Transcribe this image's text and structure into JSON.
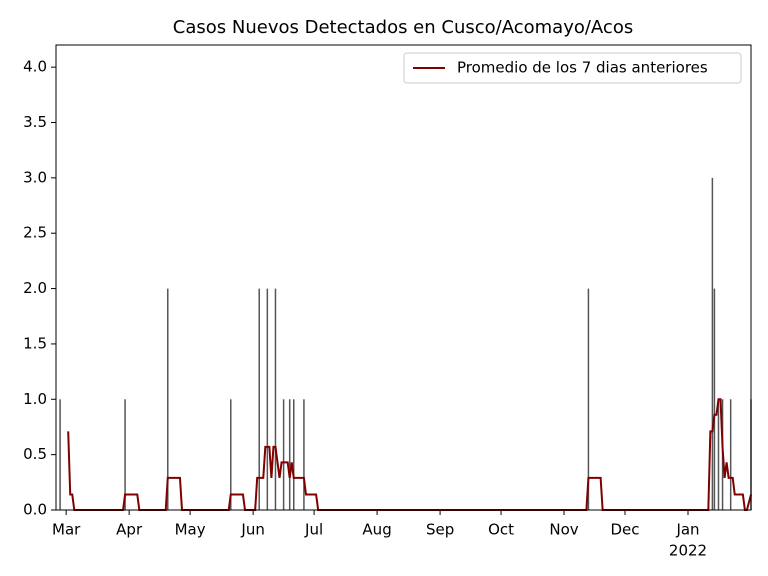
{
  "chart_data": {
    "type": "bar",
    "title": "Casos Nuevos Detectados en Cusco/Acomayo/Acos",
    "bars": {
      "color": "#555555",
      "x": [
        -3,
        29,
        50,
        81,
        95,
        99,
        103,
        107,
        110,
        112,
        117,
        257,
        318,
        319,
        321,
        323,
        327,
        337
      ],
      "values": [
        1,
        1,
        2,
        1,
        2,
        2,
        2,
        1,
        1,
        1,
        1,
        2,
        3,
        2,
        1,
        1,
        1,
        1
      ]
    },
    "series": [
      {
        "name": "Promedio de los 7 dias anteriores",
        "type": "line",
        "color": "#800000",
        "x": [
          1,
          2,
          3,
          4,
          28,
          29,
          35,
          36,
          49,
          50,
          56,
          57,
          80,
          81,
          87,
          88,
          93,
          94,
          97,
          98,
          100,
          101,
          102,
          103,
          105,
          106,
          109,
          110,
          111,
          112,
          117,
          118,
          123,
          124,
          256,
          257,
          263,
          264,
          316,
          317,
          318,
          319,
          320,
          321,
          322,
          323,
          324,
          325,
          326,
          328,
          329,
          333,
          334,
          335,
          337
        ],
        "values": [
          0.71,
          0.14,
          0.14,
          0,
          0,
          0.14,
          0.14,
          0,
          0,
          0.29,
          0.29,
          0,
          0,
          0.14,
          0.14,
          0,
          0,
          0.29,
          0.29,
          0.57,
          0.57,
          0.29,
          0.57,
          0.57,
          0.29,
          0.43,
          0.43,
          0.29,
          0.43,
          0.29,
          0.29,
          0.14,
          0.14,
          0,
          0,
          0.29,
          0.29,
          0,
          0,
          0.71,
          0.71,
          0.86,
          0.86,
          1,
          1,
          0.57,
          0.29,
          0.43,
          0.29,
          0.29,
          0.14,
          0.14,
          0,
          0,
          0.14
        ]
      }
    ],
    "xlim": [
      -5,
      337
    ],
    "xticks": [
      {
        "value": 0,
        "label": "Mar"
      },
      {
        "value": 31,
        "label": "Apr"
      },
      {
        "value": 61,
        "label": "May"
      },
      {
        "value": 92,
        "label": "Jun"
      },
      {
        "value": 122,
        "label": "Jul"
      },
      {
        "value": 153,
        "label": "Aug"
      },
      {
        "value": 184,
        "label": "Sep"
      },
      {
        "value": 214,
        "label": "Oct"
      },
      {
        "value": 245,
        "label": "Nov"
      },
      {
        "value": 275,
        "label": "Dec"
      },
      {
        "value": 306,
        "label": "Jan"
      }
    ],
    "x_year_label": "2022",
    "ylim": [
      0,
      4.2
    ],
    "yticks": [
      {
        "value": 0,
        "label": "0.0"
      },
      {
        "value": 0.5,
        "label": "0.5"
      },
      {
        "value": 1,
        "label": "1.0"
      },
      {
        "value": 1.5,
        "label": "1.5"
      },
      {
        "value": 2,
        "label": "2.0"
      },
      {
        "value": 2.5,
        "label": "2.5"
      },
      {
        "value": 3,
        "label": "3.0"
      },
      {
        "value": 3.5,
        "label": "3.5"
      },
      {
        "value": 4,
        "label": "4.0"
      }
    ],
    "legend": "upper right"
  }
}
